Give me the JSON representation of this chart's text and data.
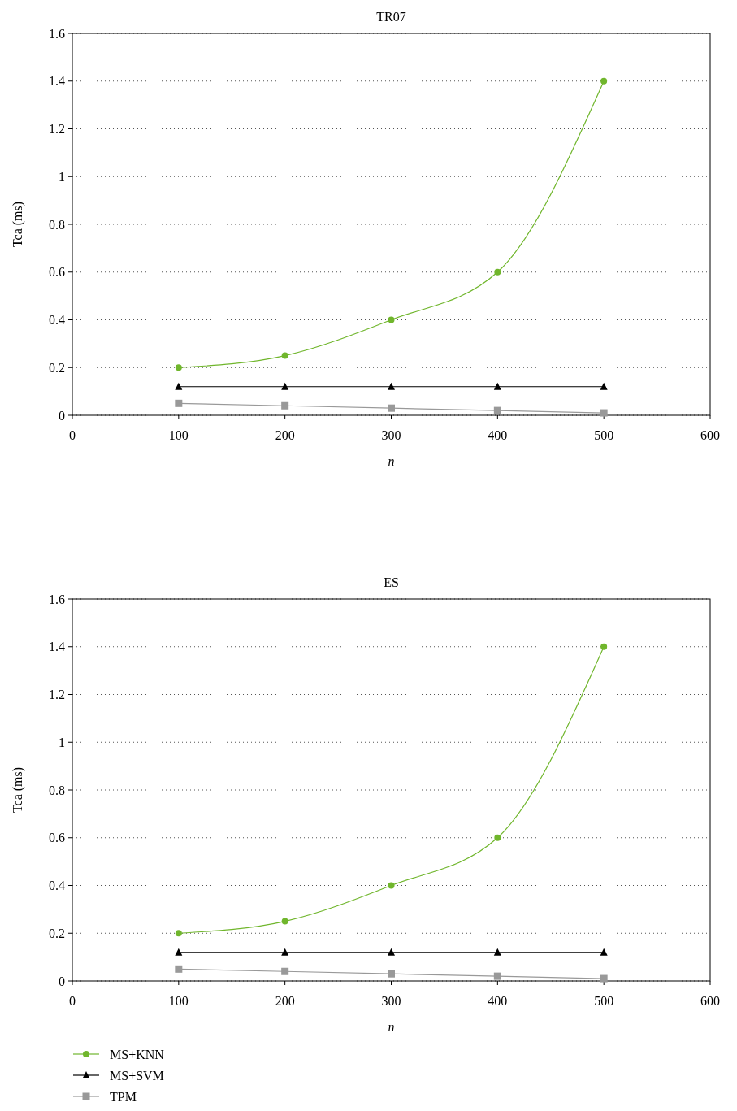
{
  "chart_data": [
    {
      "type": "line",
      "title": "TR07",
      "xlabel": "n",
      "ylabel": "Tca (ms)",
      "x": [
        100,
        200,
        300,
        400,
        500
      ],
      "xlim": [
        0,
        600
      ],
      "xticks": [
        0,
        100,
        200,
        300,
        400,
        500,
        600
      ],
      "ylim": [
        0,
        1.6
      ],
      "yticks": [
        0,
        0.2,
        0.4,
        0.6,
        0.8,
        1,
        1.2,
        1.4,
        1.6
      ],
      "grid": "y",
      "legend": false,
      "series": [
        {
          "color": "#70b62c",
          "marker": "circle",
          "values": [
            0.2,
            0.25,
            0.4,
            0.6,
            1.4
          ]
        },
        {
          "color": "#000000",
          "marker": "triangle",
          "values": [
            0.12,
            0.12,
            0.12,
            0.12,
            0.12
          ]
        },
        {
          "color": "#999999",
          "marker": "square",
          "values": [
            0.05,
            0.04,
            0.03,
            0.02,
            0.01
          ]
        }
      ]
    },
    {
      "type": "line",
      "title": "ES",
      "xlabel": "n",
      "ylabel": "Tca (ms)",
      "x": [
        100,
        200,
        300,
        400,
        500
      ],
      "xlim": [
        0,
        600
      ],
      "xticks": [
        0,
        100,
        200,
        300,
        400,
        500,
        600
      ],
      "ylim": [
        0,
        1.6
      ],
      "yticks": [
        0,
        0.2,
        0.4,
        0.6,
        0.8,
        1,
        1.2,
        1.4,
        1.6
      ],
      "grid": "y",
      "legend": "bottom left",
      "series": [
        {
          "name": "MS+KNN",
          "color": "#70b62c",
          "marker": "circle",
          "values": [
            0.2,
            0.25,
            0.4,
            0.6,
            1.4
          ]
        },
        {
          "name": "MS+SVM",
          "color": "#000000",
          "marker": "triangle",
          "values": [
            0.12,
            0.12,
            0.12,
            0.12,
            0.12
          ]
        },
        {
          "name": "TPM",
          "color": "#999999",
          "marker": "square",
          "values": [
            0.05,
            0.04,
            0.03,
            0.02,
            0.01
          ]
        }
      ]
    }
  ]
}
